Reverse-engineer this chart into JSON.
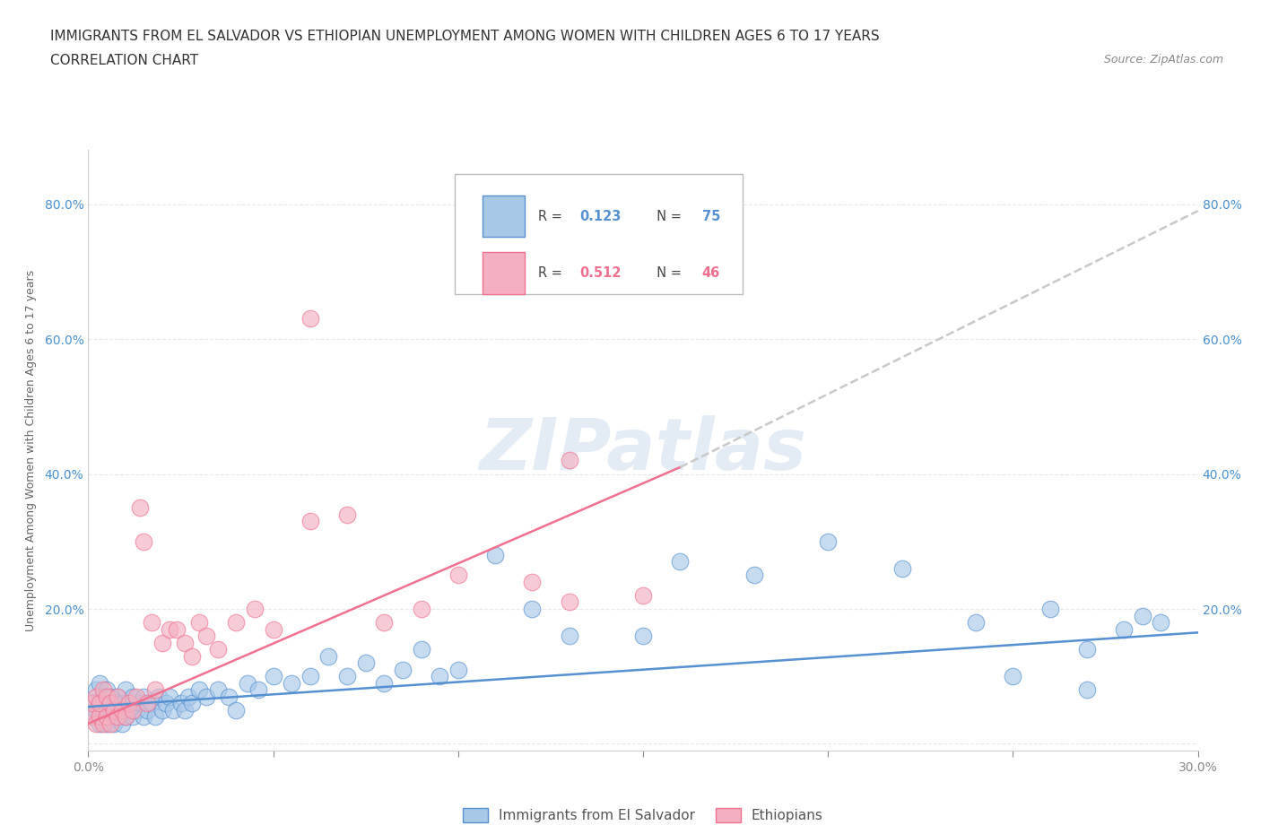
{
  "title_line1": "IMMIGRANTS FROM EL SALVADOR VS ETHIOPIAN UNEMPLOYMENT AMONG WOMEN WITH CHILDREN AGES 6 TO 17 YEARS",
  "title_line2": "CORRELATION CHART",
  "source_text": "Source: ZipAtlas.com",
  "ylabel": "Unemployment Among Women with Children Ages 6 to 17 years",
  "xlim": [
    0.0,
    0.3
  ],
  "ylim": [
    -0.01,
    0.88
  ],
  "xticks": [
    0.0,
    0.05,
    0.1,
    0.15,
    0.2,
    0.25,
    0.3
  ],
  "xticklabels": [
    "0.0%",
    "",
    "",
    "",
    "",
    "",
    "30.0%"
  ],
  "yticks": [
    0.0,
    0.2,
    0.4,
    0.6,
    0.8
  ],
  "yticklabels": [
    "",
    "20.0%",
    "40.0%",
    "60.0%",
    "80.0%"
  ],
  "watermark": "ZIPatlas",
  "color_salvador": "#a8c8e8",
  "color_ethiopian": "#f4b0c0",
  "color_salvador_line": "#5590d0",
  "color_ethiopian_line": "#f07090",
  "color_extended_line": "#c8c8c8",
  "background_color": "#ffffff",
  "grid_color": "#e8e8e8",
  "salvador_x": [
    0.001,
    0.001,
    0.002,
    0.002,
    0.003,
    0.003,
    0.003,
    0.004,
    0.004,
    0.005,
    0.005,
    0.005,
    0.006,
    0.006,
    0.007,
    0.007,
    0.008,
    0.008,
    0.009,
    0.009,
    0.01,
    0.01,
    0.011,
    0.012,
    0.012,
    0.013,
    0.014,
    0.015,
    0.015,
    0.016,
    0.017,
    0.018,
    0.019,
    0.02,
    0.021,
    0.022,
    0.023,
    0.025,
    0.026,
    0.027,
    0.028,
    0.03,
    0.032,
    0.035,
    0.038,
    0.04,
    0.043,
    0.046,
    0.05,
    0.055,
    0.06,
    0.065,
    0.07,
    0.075,
    0.08,
    0.085,
    0.09,
    0.095,
    0.1,
    0.11,
    0.12,
    0.13,
    0.15,
    0.16,
    0.18,
    0.2,
    0.22,
    0.24,
    0.26,
    0.27,
    0.28,
    0.285,
    0.29,
    0.27,
    0.25
  ],
  "salvador_y": [
    0.04,
    0.06,
    0.05,
    0.08,
    0.03,
    0.06,
    0.09,
    0.04,
    0.07,
    0.03,
    0.05,
    0.08,
    0.04,
    0.07,
    0.03,
    0.06,
    0.04,
    0.07,
    0.03,
    0.06,
    0.04,
    0.08,
    0.05,
    0.04,
    0.07,
    0.05,
    0.06,
    0.04,
    0.07,
    0.05,
    0.06,
    0.04,
    0.07,
    0.05,
    0.06,
    0.07,
    0.05,
    0.06,
    0.05,
    0.07,
    0.06,
    0.08,
    0.07,
    0.08,
    0.07,
    0.05,
    0.09,
    0.08,
    0.1,
    0.09,
    0.1,
    0.13,
    0.1,
    0.12,
    0.09,
    0.11,
    0.14,
    0.1,
    0.11,
    0.28,
    0.2,
    0.16,
    0.16,
    0.27,
    0.25,
    0.3,
    0.26,
    0.18,
    0.2,
    0.08,
    0.17,
    0.19,
    0.18,
    0.14,
    0.1
  ],
  "ethiopian_x": [
    0.001,
    0.001,
    0.002,
    0.002,
    0.003,
    0.003,
    0.004,
    0.004,
    0.005,
    0.005,
    0.006,
    0.006,
    0.007,
    0.008,
    0.008,
    0.009,
    0.01,
    0.011,
    0.012,
    0.013,
    0.014,
    0.015,
    0.016,
    0.017,
    0.018,
    0.02,
    0.022,
    0.024,
    0.026,
    0.028,
    0.03,
    0.032,
    0.035,
    0.04,
    0.045,
    0.05,
    0.06,
    0.07,
    0.08,
    0.09,
    0.1,
    0.12,
    0.13,
    0.15,
    0.06,
    0.13
  ],
  "ethiopian_y": [
    0.04,
    0.06,
    0.03,
    0.07,
    0.04,
    0.06,
    0.03,
    0.08,
    0.04,
    0.07,
    0.03,
    0.06,
    0.05,
    0.04,
    0.07,
    0.05,
    0.04,
    0.06,
    0.05,
    0.07,
    0.35,
    0.3,
    0.06,
    0.18,
    0.08,
    0.15,
    0.17,
    0.17,
    0.15,
    0.13,
    0.18,
    0.16,
    0.14,
    0.18,
    0.2,
    0.17,
    0.33,
    0.34,
    0.18,
    0.2,
    0.25,
    0.24,
    0.21,
    0.22,
    0.63,
    0.42
  ],
  "sal_trend": [
    0.0,
    0.3,
    0.055,
    0.165
  ],
  "eth_trend_solid": [
    0.0,
    0.16,
    0.03,
    0.41
  ],
  "eth_trend_dash": [
    0.16,
    0.3,
    0.41,
    0.79
  ],
  "title_fontsize": 11,
  "subtitle_fontsize": 11,
  "axis_label_fontsize": 9,
  "tick_fontsize": 10,
  "legend_R1": "0.123",
  "legend_N1": "75",
  "legend_R2": "0.512",
  "legend_N2": "46"
}
